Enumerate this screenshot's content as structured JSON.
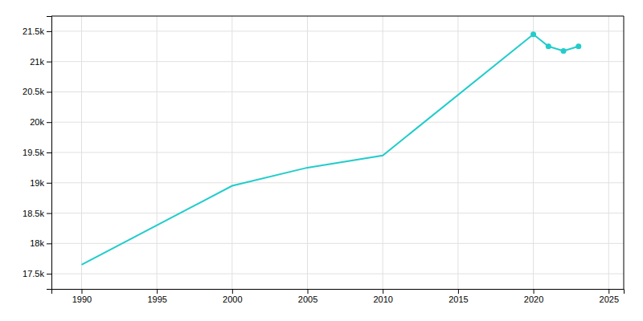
{
  "chart_data": {
    "type": "line",
    "x": [
      1990,
      2000,
      2005,
      2010,
      2020,
      2021,
      2022,
      2023
    ],
    "series": [
      {
        "type": "line",
        "color": "#22CCCC",
        "values": [
          17650,
          18950,
          19250,
          19450,
          21450,
          21250,
          21175,
          21250
        ]
      },
      {
        "type": "scatter",
        "marker": "circle",
        "color": "#22CCCC",
        "values": [
          null,
          null,
          null,
          null,
          21450,
          21250,
          21175,
          21250
        ]
      }
    ],
    "xlim": [
      1988,
      2026
    ],
    "ylim": [
      17250,
      21750
    ],
    "xticks": [
      1990,
      1995,
      2000,
      2005,
      2010,
      2015,
      2020,
      2025
    ],
    "yticks": [
      {
        "value": 17500,
        "label": "17.5k"
      },
      {
        "value": 18000,
        "label": "18k"
      },
      {
        "value": 18500,
        "label": "18.5k"
      },
      {
        "value": 19000,
        "label": "19k"
      },
      {
        "value": 19500,
        "label": "19.5k"
      },
      {
        "value": 20000,
        "label": "20k"
      },
      {
        "value": 20500,
        "label": "20.5k"
      },
      {
        "value": 21000,
        "label": "21k"
      },
      {
        "value": 21500,
        "label": "21.5k"
      }
    ],
    "grid": true
  }
}
